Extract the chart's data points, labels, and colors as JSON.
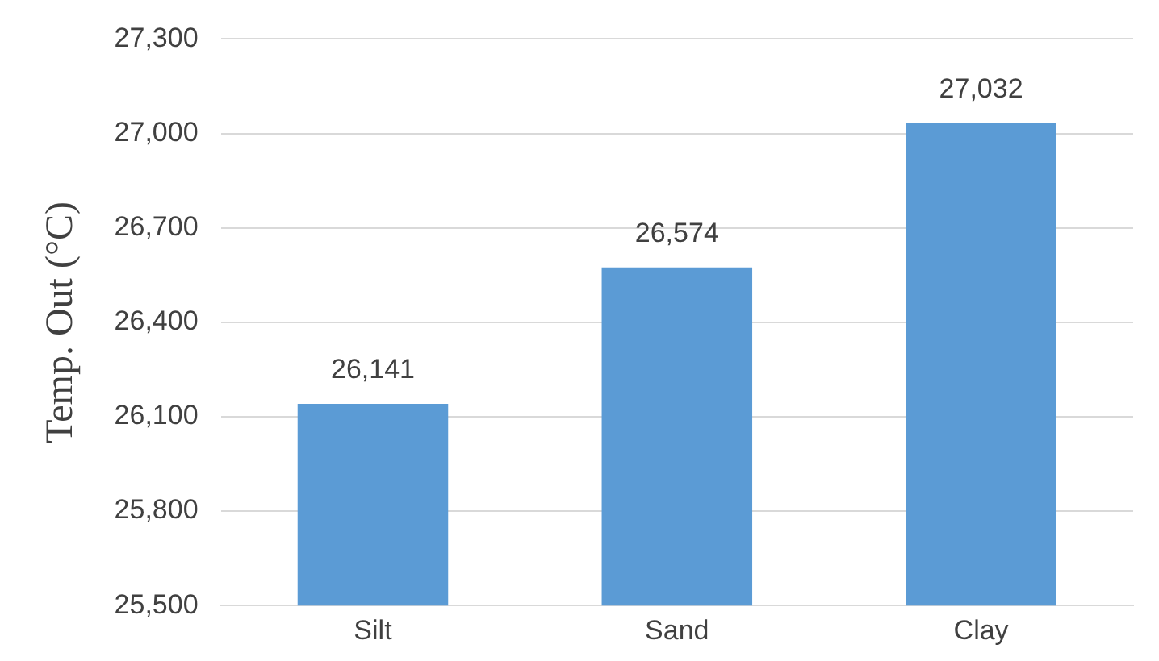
{
  "chart_data": {
    "type": "bar",
    "ylabel": "Temp. Out (°C)",
    "categories": [
      "Silt",
      "Sand",
      "Clay"
    ],
    "series": [
      {
        "color": "#5b9bd5",
        "values": [
          26141,
          26574,
          27032
        ],
        "value_labels": [
          "26,141",
          "26,574",
          "27,032"
        ]
      }
    ],
    "ylim": [
      25500,
      27300
    ],
    "yticks": [
      {
        "value": 25500,
        "label": "25,500"
      },
      {
        "value": 25800,
        "label": "25,800"
      },
      {
        "value": 26100,
        "label": "26,100"
      },
      {
        "value": 26400,
        "label": "26,400"
      },
      {
        "value": 26700,
        "label": "26,700"
      },
      {
        "value": 27000,
        "label": "27,000"
      },
      {
        "value": 27300,
        "label": "27,300"
      }
    ],
    "grid": "y",
    "legend": false
  }
}
